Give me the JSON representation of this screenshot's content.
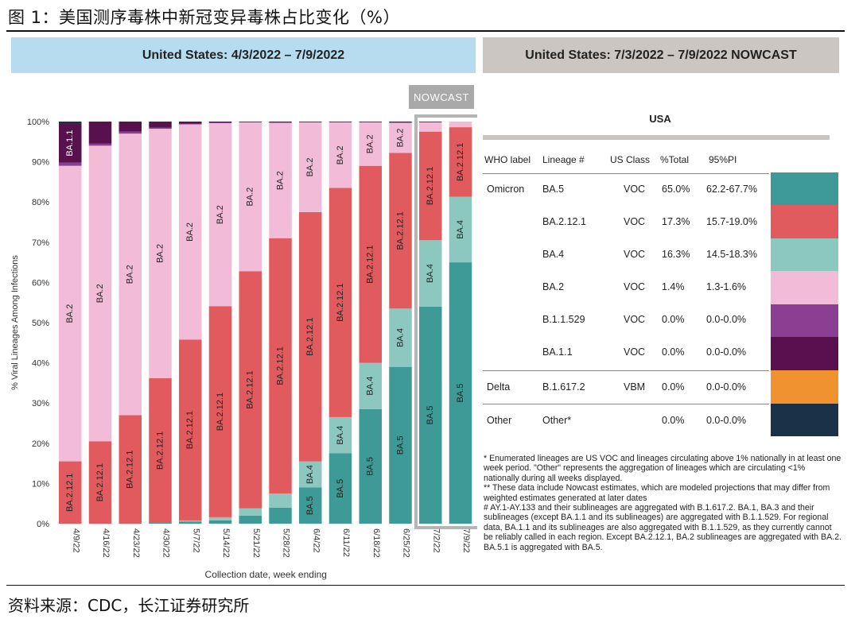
{
  "figure_title": "图 1：美国测序毒株中新冠变异毒株占比变化（%）",
  "source": "资料来源：CDC，长江证券研究所",
  "header_left": "United States: 4/3/2022 – 7/9/2022",
  "header_right": "United States: 7/3/2022 – 7/9/2022 NOWCAST",
  "nowcast_label": "NOWCAST",
  "chart_data": {
    "type": "bar",
    "stacked": true,
    "percent": true,
    "ylabel": "% Viral Lineages Among Infections",
    "xlabel": "Collection date, week ending",
    "ylim": [
      0,
      100
    ],
    "yticks": [
      "0%",
      "10%",
      "20%",
      "30%",
      "40%",
      "50%",
      "60%",
      "70%",
      "80%",
      "90%",
      "100%"
    ],
    "categories": [
      "4/9/22",
      "4/16/22",
      "4/23/22",
      "4/30/22",
      "5/7/22",
      "5/14/22",
      "5/21/22",
      "5/28/22",
      "6/4/22",
      "6/11/22",
      "6/18/22",
      "6/25/22",
      "7/2/22",
      "7/9/22"
    ],
    "nowcast_categories": [
      "7/2/22",
      "7/9/22"
    ],
    "series": [
      {
        "name": "BA.5",
        "color": "#3d9a96",
        "values": [
          0,
          0,
          0,
          0.2,
          0.5,
          0.8,
          2,
          4,
          9,
          17.5,
          28.5,
          39,
          54,
          65
        ]
      },
      {
        "name": "BA.4",
        "color": "#8cc8c0",
        "values": [
          0,
          0,
          0,
          0,
          0.3,
          0.8,
          1.8,
          3.5,
          6.5,
          9,
          11.5,
          14.5,
          16.5,
          16.3
        ]
      },
      {
        "name": "BA.2.12.1",
        "color": "#e05a5e",
        "values": [
          15.5,
          20.5,
          27,
          36,
          45,
          52.5,
          59,
          63.5,
          62,
          57,
          49,
          38.7,
          27,
          17.3
        ]
      },
      {
        "name": "BA.2",
        "color": "#f2bcd9",
        "values": [
          73.5,
          73.5,
          70,
          62,
          53.5,
          45.5,
          37,
          28.7,
          22.3,
          16.3,
          10.8,
          7.5,
          2.3,
          1.4
        ]
      },
      {
        "name": "B.1.1.529",
        "color": "#8a3f93",
        "values": [
          0.8,
          0.5,
          0.5,
          0.3,
          0.2,
          0.2,
          0.1,
          0.1,
          0.1,
          0.1,
          0.1,
          0.1,
          0.1,
          0
        ]
      },
      {
        "name": "BA.1.1",
        "color": "#58104f",
        "values": [
          9.7,
          5.3,
          2.3,
          1.3,
          0.4,
          0.1,
          0,
          0,
          0,
          0,
          0,
          0,
          0,
          0
        ]
      },
      {
        "name": "Other",
        "color": "#1b3147",
        "values": [
          0.5,
          0.2,
          0.2,
          0.2,
          0.1,
          0.1,
          0.1,
          0.2,
          0.1,
          0.1,
          0.1,
          0.2,
          0.1,
          0
        ]
      }
    ],
    "bar_labels": [
      [
        {
          "series": "BA.2.12.1",
          "text": "BA.2.12.1"
        },
        {
          "series": "BA.2",
          "text": "BA.2"
        },
        {
          "series": "BA.1.1",
          "text": "BA.1.1"
        }
      ],
      [
        {
          "series": "BA.2.12.1",
          "text": "BA.2.12.1"
        },
        {
          "series": "BA.2",
          "text": "BA.2"
        }
      ],
      [
        {
          "series": "BA.2.12.1",
          "text": "BA.2.12.1"
        },
        {
          "series": "BA.2",
          "text": "BA.2"
        }
      ],
      [
        {
          "series": "BA.2.12.1",
          "text": "BA.2.12.1"
        },
        {
          "series": "BA.2",
          "text": "BA.2"
        }
      ],
      [
        {
          "series": "BA.2.12.1",
          "text": "BA.2.12.1"
        },
        {
          "series": "BA.2",
          "text": "BA.2"
        }
      ],
      [
        {
          "series": "BA.2.12.1",
          "text": "BA.2.12.1"
        },
        {
          "series": "BA.2",
          "text": "BA.2"
        }
      ],
      [
        {
          "series": "BA.2.12.1",
          "text": "BA.2.12.1"
        },
        {
          "series": "BA.2",
          "text": "BA.2"
        }
      ],
      [
        {
          "series": "BA.2.12.1",
          "text": "BA.2.12.1"
        },
        {
          "series": "BA.2",
          "text": "BA.2"
        }
      ],
      [
        {
          "series": "BA.5",
          "text": "BA.5"
        },
        {
          "series": "BA.4",
          "text": "BA.4"
        },
        {
          "series": "BA.2.12.1",
          "text": "BA.2.12.1"
        },
        {
          "series": "BA.2",
          "text": "BA.2"
        }
      ],
      [
        {
          "series": "BA.5",
          "text": "BA.5"
        },
        {
          "series": "BA.4",
          "text": "BA.4"
        },
        {
          "series": "BA.2.12.1",
          "text": "BA.2.12.1"
        },
        {
          "series": "BA.2",
          "text": "BA.2"
        }
      ],
      [
        {
          "series": "BA.5",
          "text": "BA.5"
        },
        {
          "series": "BA.4",
          "text": "BA.4"
        },
        {
          "series": "BA.2.12.1",
          "text": "BA.2.12.1"
        },
        {
          "series": "BA.2",
          "text": "BA.2"
        }
      ],
      [
        {
          "series": "BA.5",
          "text": "BA.5"
        },
        {
          "series": "BA.4",
          "text": "BA.4"
        },
        {
          "series": "BA.2.12.1",
          "text": "BA.2.12.1"
        },
        {
          "series": "BA.2",
          "text": "BA.2"
        }
      ],
      [
        {
          "series": "BA.5",
          "text": "BA.5"
        },
        {
          "series": "BA.4",
          "text": "BA.4"
        },
        {
          "series": "BA.2.12.1",
          "text": "BA.2.12.1"
        }
      ],
      [
        {
          "series": "BA.5",
          "text": "BA.5"
        },
        {
          "series": "BA.4",
          "text": "BA.4"
        },
        {
          "series": "BA.2.12.1",
          "text": "BA.2.12.1"
        }
      ]
    ]
  },
  "table": {
    "title": "USA",
    "headers": [
      "WHO label",
      "Lineage #",
      "US Class",
      "%Total",
      "95%PI"
    ],
    "rows": [
      {
        "who": "Omicron",
        "lineage": "BA.5",
        "us_class": "VOC",
        "total": "65.0%",
        "pi": "62.2-67.7%",
        "color": "#3d9a96"
      },
      {
        "who": "",
        "lineage": "BA.2.12.1",
        "us_class": "VOC",
        "total": "17.3%",
        "pi": "15.7-19.0%",
        "color": "#e05a5e"
      },
      {
        "who": "",
        "lineage": "BA.4",
        "us_class": "VOC",
        "total": "16.3%",
        "pi": "14.5-18.3%",
        "color": "#8cc8c0"
      },
      {
        "who": "",
        "lineage": "BA.2",
        "us_class": "VOC",
        "total": "1.4%",
        "pi": "1.3-1.6%",
        "color": "#f2bcd9"
      },
      {
        "who": "",
        "lineage": "B.1.1.529",
        "us_class": "VOC",
        "total": "0.0%",
        "pi": "0.0-0.0%",
        "color": "#8a3f93"
      },
      {
        "who": "",
        "lineage": "BA.1.1",
        "us_class": "VOC",
        "total": "0.0%",
        "pi": "0.0-0.0%",
        "color": "#58104f"
      },
      {
        "who": "Delta",
        "lineage": "B.1.617.2",
        "us_class": "VBM",
        "total": "0.0%",
        "pi": "0.0-0.0%",
        "color": "#f0922f"
      },
      {
        "who": "Other",
        "lineage": "Other*",
        "us_class": "",
        "total": "0.0%",
        "pi": "0.0-0.0%",
        "color": "#1b3147"
      }
    ]
  },
  "notes": [
    "*      Enumerated lineages are US VOC and lineages circulating above 1% nationally in at least one week period. \"Other\" represents the aggregation of lineages which are circulating <1% nationally during all weeks displayed.",
    "**      These data include Nowcast estimates, which are modeled projections that may differ from weighted estimates generated at later dates",
    "#      AY.1-AY.133 and their sublineages are aggregated with B.1.617.2. BA.1, BA.3 and their sublineages (except BA.1.1 and its sublineages) are aggregated with B.1.1.529. For regional data, BA.1.1 and its sublineages are also aggregated with B.1.1.529, as they currently cannot be reliably called in each region. Except BA.2.12.1, BA.2 sublineages are aggregated with BA.2. BA.5.1 is aggregated with BA.5."
  ]
}
